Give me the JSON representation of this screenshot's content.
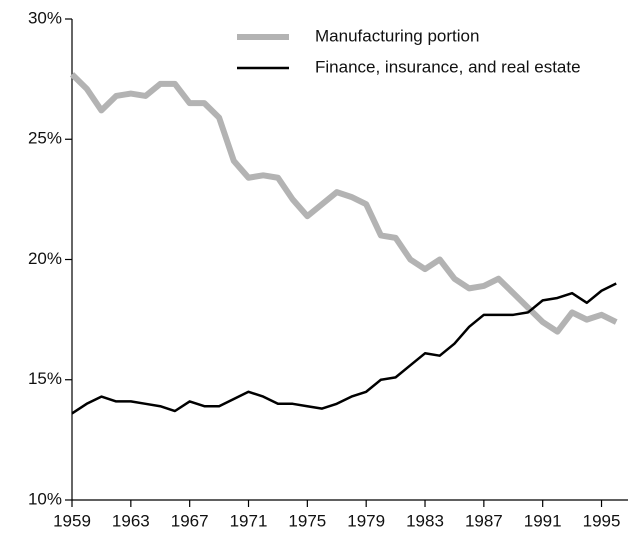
{
  "chart_data": {
    "type": "line",
    "x": [
      1959,
      1960,
      1961,
      1962,
      1963,
      1964,
      1965,
      1966,
      1967,
      1968,
      1969,
      1970,
      1971,
      1972,
      1973,
      1974,
      1975,
      1976,
      1977,
      1978,
      1979,
      1980,
      1981,
      1982,
      1983,
      1984,
      1985,
      1986,
      1987,
      1988,
      1989,
      1990,
      1991,
      1992,
      1993,
      1994,
      1995,
      1996
    ],
    "series": [
      {
        "name": "Manufacturing portion",
        "color": "#b3b3b3",
        "width": 6,
        "values": [
          27.7,
          27.1,
          26.2,
          26.8,
          26.9,
          26.8,
          27.3,
          27.3,
          26.5,
          26.5,
          25.9,
          24.1,
          23.4,
          23.5,
          23.4,
          22.5,
          21.8,
          22.3,
          22.8,
          22.6,
          22.3,
          21.0,
          20.9,
          20.0,
          19.6,
          20.0,
          19.2,
          18.8,
          18.9,
          19.2,
          18.6,
          18.0,
          17.4,
          17.0,
          17.8,
          17.5,
          17.7,
          17.4
        ]
      },
      {
        "name": "Finance, insurance, and real estate",
        "color": "#000000",
        "width": 2.5,
        "values": [
          13.6,
          14.0,
          14.3,
          14.1,
          14.1,
          14.0,
          13.9,
          13.7,
          14.1,
          13.9,
          13.9,
          14.2,
          14.5,
          14.3,
          14.0,
          14.0,
          13.9,
          13.8,
          14.0,
          14.3,
          14.5,
          15.0,
          15.1,
          15.6,
          16.1,
          16.0,
          16.5,
          17.2,
          17.7,
          17.7,
          17.7,
          17.8,
          18.3,
          18.4,
          18.6,
          18.2,
          18.7,
          19.0
        ]
      }
    ],
    "xlim": [
      1959,
      1996.8
    ],
    "xticks": [
      1959,
      1963,
      1967,
      1971,
      1975,
      1979,
      1983,
      1987,
      1991,
      1995
    ],
    "ylim": [
      10,
      30
    ],
    "yticks": [
      {
        "value": 10,
        "label": "10%"
      },
      {
        "value": 15,
        "label": "15%"
      },
      {
        "value": 20,
        "label": "20%"
      },
      {
        "value": 25,
        "label": "25%"
      },
      {
        "value": 30,
        "label": "30%"
      }
    ],
    "grid": false,
    "legend": "top-right"
  }
}
